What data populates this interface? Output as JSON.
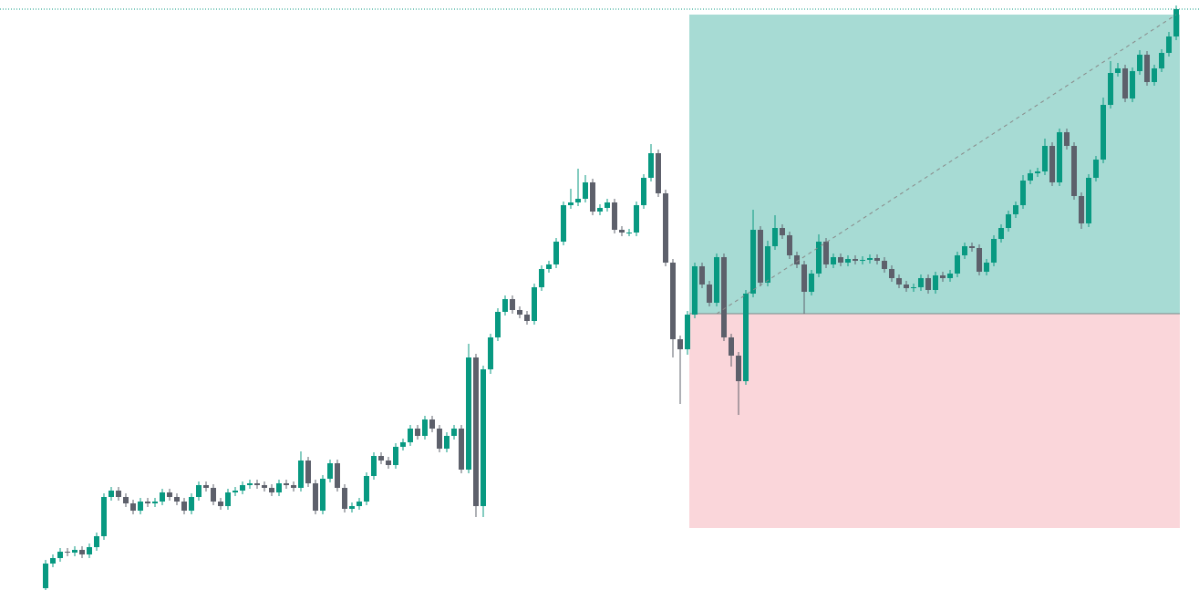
{
  "chart_data": {
    "type": "candlestick",
    "ylim": [
      0,
      647
    ],
    "up_color": "#089981",
    "down_color": "#5d606b",
    "open": [
      2,
      29,
      35,
      42,
      41,
      44,
      39,
      47,
      59,
      102,
      109,
      102,
      95,
      87,
      97,
      95,
      97,
      107,
      102,
      97,
      87,
      102,
      115,
      112,
      97,
      92,
      107,
      109,
      115,
      117,
      115,
      112,
      107,
      117,
      115,
      112,
      142,
      117,
      87,
      122,
      139,
      112,
      89,
      92,
      97,
      125,
      147,
      142,
      137,
      157,
      162,
      177,
      169,
      187,
      177,
      155,
      169,
      177,
      132,
      255,
      92,
      242,
      277,
      305,
      319,
      307,
      302,
      295,
      332,
      352,
      357,
      382,
      422,
      425,
      429,
      447,
      415,
      419,
      425,
      395,
      392,
      392,
      422,
      452,
      479,
      435,
      359,
      275,
      264,
      302,
      355,
      335,
      315,
      365,
      277,
      257,
      229,
      325,
      395,
      337,
      377,
      397,
      389,
      367,
      357,
      327,
      347,
      382,
      357,
      365,
      359,
      363,
      361,
      362,
      364,
      361,
      352,
      342,
      335,
      331,
      332,
      342,
      329,
      345,
      342,
      347,
      367,
      377,
      375,
      349,
      359,
      385,
      397,
      412,
      422,
      449,
      457,
      459,
      487,
      447,
      502,
      487,
      432,
      402,
      452,
      472,
      532,
      567,
      572,
      539,
      569,
      587,
      557,
      572,
      589,
      607
    ],
    "close": [
      29,
      35,
      42,
      41,
      44,
      39,
      47,
      59,
      102,
      109,
      102,
      95,
      87,
      97,
      95,
      97,
      107,
      102,
      97,
      87,
      102,
      115,
      112,
      97,
      92,
      107,
      109,
      115,
      117,
      115,
      112,
      107,
      117,
      115,
      112,
      142,
      117,
      87,
      122,
      139,
      112,
      89,
      92,
      97,
      125,
      147,
      142,
      137,
      157,
      162,
      177,
      169,
      187,
      177,
      155,
      169,
      177,
      132,
      255,
      92,
      242,
      277,
      305,
      319,
      307,
      302,
      295,
      332,
      352,
      357,
      382,
      422,
      425,
      429,
      447,
      415,
      419,
      425,
      395,
      392,
      392,
      422,
      452,
      479,
      435,
      359,
      275,
      264,
      302,
      355,
      335,
      315,
      365,
      277,
      257,
      229,
      325,
      395,
      337,
      377,
      397,
      389,
      367,
      357,
      327,
      347,
      382,
      357,
      365,
      359,
      363,
      361,
      362,
      364,
      361,
      352,
      342,
      335,
      331,
      332,
      342,
      329,
      345,
      342,
      347,
      367,
      377,
      375,
      349,
      359,
      385,
      397,
      412,
      422,
      449,
      457,
      459,
      487,
      447,
      502,
      487,
      432,
      402,
      452,
      472,
      532,
      567,
      572,
      539,
      569,
      587,
      557,
      572,
      589,
      607,
      637
    ],
    "high": [
      33,
      39,
      46,
      46,
      48,
      48,
      51,
      63,
      106,
      113,
      113,
      106,
      99,
      101,
      101,
      101,
      111,
      111,
      106,
      101,
      106,
      119,
      119,
      116,
      101,
      111,
      113,
      119,
      121,
      121,
      119,
      116,
      121,
      121,
      119,
      152,
      146,
      121,
      126,
      143,
      143,
      116,
      96,
      101,
      129,
      151,
      151,
      146,
      161,
      166,
      181,
      181,
      191,
      191,
      181,
      173,
      181,
      181,
      270,
      259,
      246,
      281,
      309,
      323,
      323,
      311,
      306,
      336,
      356,
      361,
      386,
      426,
      440,
      462,
      455,
      451,
      423,
      429,
      429,
      399,
      396,
      426,
      456,
      489,
      483,
      439,
      363,
      279,
      306,
      359,
      359,
      339,
      369,
      369,
      281,
      261,
      329,
      417,
      399,
      383,
      411,
      401,
      393,
      371,
      361,
      351,
      390,
      386,
      369,
      369,
      367,
      367,
      366,
      368,
      368,
      365,
      356,
      346,
      339,
      336,
      346,
      346,
      349,
      349,
      351,
      371,
      381,
      381,
      379,
      363,
      389,
      401,
      416,
      426,
      455,
      461,
      463,
      495,
      491,
      506,
      506,
      491,
      436,
      456,
      476,
      540,
      580,
      578,
      576,
      573,
      592,
      591,
      576,
      593,
      612,
      641
    ],
    "low": [
      0,
      25,
      31,
      37,
      37,
      35,
      35,
      43,
      55,
      98,
      98,
      91,
      83,
      83,
      91,
      91,
      93,
      98,
      93,
      83,
      83,
      98,
      108,
      93,
      88,
      88,
      103,
      105,
      111,
      111,
      108,
      103,
      103,
      111,
      108,
      108,
      113,
      83,
      83,
      118,
      108,
      85,
      85,
      88,
      93,
      121,
      138,
      133,
      133,
      153,
      158,
      165,
      165,
      173,
      151,
      151,
      165,
      128,
      128,
      80,
      80,
      237,
      273,
      301,
      303,
      298,
      291,
      291,
      328,
      348,
      353,
      378,
      418,
      421,
      425,
      411,
      411,
      415,
      391,
      388,
      388,
      388,
      418,
      448,
      431,
      355,
      255,
      204,
      258,
      298,
      331,
      311,
      311,
      273,
      245,
      192,
      225,
      321,
      333,
      333,
      373,
      385,
      363,
      353,
      303,
      323,
      343,
      353,
      353,
      355,
      355,
      357,
      357,
      358,
      357,
      348,
      338,
      331,
      327,
      327,
      328,
      325,
      325,
      338,
      338,
      343,
      363,
      371,
      345,
      345,
      355,
      381,
      393,
      408,
      418,
      445,
      453,
      455,
      443,
      443,
      483,
      428,
      396,
      398,
      448,
      468,
      528,
      563,
      535,
      535,
      565,
      553,
      553,
      568,
      585,
      603
    ],
    "position": {
      "target": 631,
      "entry": 303,
      "stop": 68,
      "target_color": "#a7dbd4",
      "stop_color": "#fad6da"
    }
  }
}
